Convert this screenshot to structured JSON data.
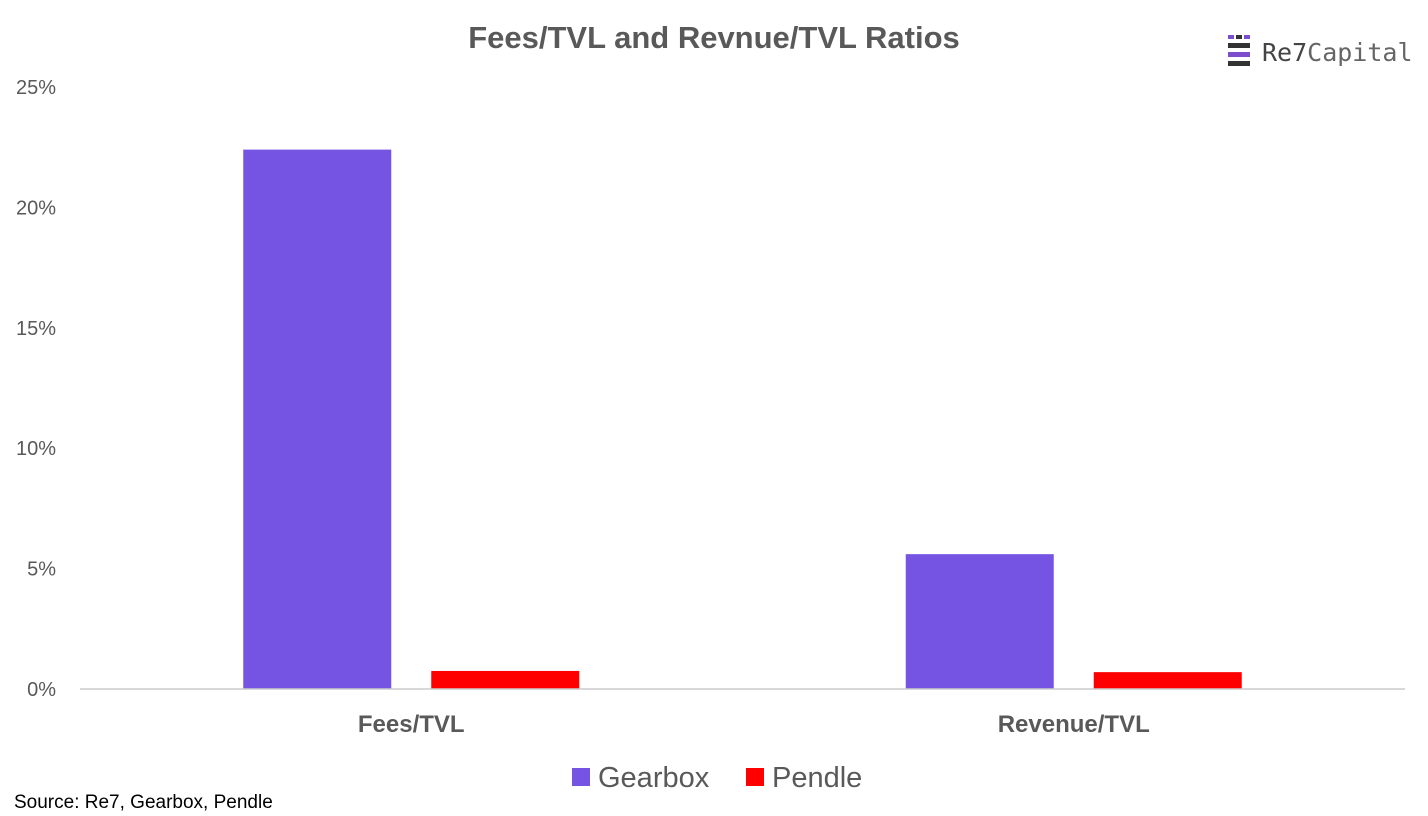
{
  "chart_data": {
    "type": "bar",
    "title": "Fees/TVL and Revnue/TVL Ratios",
    "categories": [
      "Fees/TVL",
      "Revenue/TVL"
    ],
    "series": [
      {
        "name": "Gearbox",
        "values": [
          22.4,
          5.6
        ],
        "color": "#7654E3"
      },
      {
        "name": "Pendle",
        "values": [
          0.75,
          0.7
        ],
        "color": "#FF0000"
      }
    ],
    "ylim": [
      0,
      25
    ],
    "yticks": [
      0,
      5,
      10,
      15,
      20,
      25
    ],
    "ytick_labels": [
      "0%",
      "5%",
      "10%",
      "15%",
      "20%",
      "25%"
    ],
    "xlabel": "",
    "ylabel": "",
    "grid": false,
    "legend_position": "bottom"
  },
  "logo": {
    "text_primary": "Re7",
    "text_secondary": "Capital",
    "icon": "re7-logo-icon"
  },
  "source_note": "Source: Re7, Gearbox, Pendle"
}
